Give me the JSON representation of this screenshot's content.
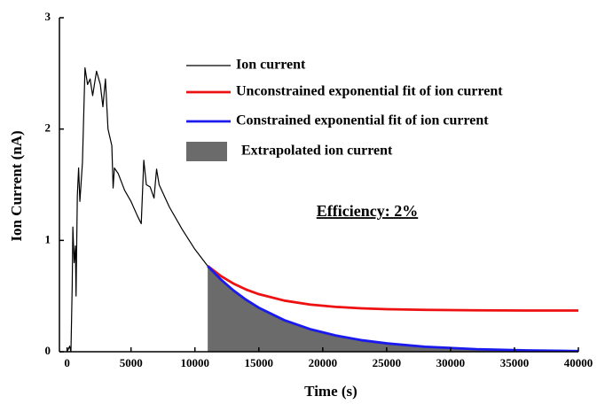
{
  "chart_data": {
    "type": "line",
    "xlabel": "Time (s)",
    "ylabel": "Ion Current (nA)",
    "annotation": "Efficiency: 2%",
    "xlim": [
      -600,
      40000
    ],
    "ylim": [
      0,
      3
    ],
    "xticks": [
      0,
      5000,
      10000,
      15000,
      20000,
      25000,
      30000,
      35000,
      40000
    ],
    "yticks": [
      0,
      1,
      2,
      3
    ],
    "series": [
      {
        "name": "Ion current",
        "color": "#000000",
        "x": [
          0,
          200,
          300,
          400,
          450,
          550,
          650,
          700,
          800,
          900,
          1000,
          1200,
          1400,
          1600,
          1800,
          2000,
          2300,
          2600,
          2800,
          3000,
          3200,
          3500,
          3600,
          3700,
          4000,
          4500,
          5000,
          5500,
          5800,
          6000,
          6200,
          6500,
          6800,
          7000,
          7200,
          8000,
          9000,
          10000,
          11000
        ],
        "values": [
          0,
          0.05,
          0,
          0.6,
          1.12,
          0.8,
          0.95,
          0.5,
          1.4,
          1.65,
          1.35,
          1.7,
          2.55,
          2.4,
          2.45,
          2.3,
          2.52,
          2.4,
          2.2,
          2.45,
          2.0,
          1.85,
          1.47,
          1.65,
          1.6,
          1.45,
          1.35,
          1.22,
          1.15,
          1.72,
          1.5,
          1.48,
          1.38,
          1.64,
          1.5,
          1.3,
          1.1,
          0.92,
          0.77
        ]
      },
      {
        "name": "Unconstrained exponential fit of ion current",
        "color": "#ee1111",
        "x": [
          11000,
          12000,
          13000,
          14000,
          15000,
          17000,
          19000,
          21000,
          23000,
          25000,
          28000,
          32000,
          36000,
          40000
        ],
        "values": [
          0.77,
          0.682,
          0.613,
          0.559,
          0.517,
          0.459,
          0.424,
          0.403,
          0.39,
          0.382,
          0.376,
          0.372,
          0.37,
          0.37
        ]
      },
      {
        "name": "Constrained exponential fit of ion current",
        "color": "#1a1aee",
        "x": [
          11000,
          12000,
          13000,
          14000,
          15000,
          17000,
          19000,
          21000,
          23000,
          25000,
          28000,
          32000,
          36000,
          40000
        ],
        "values": [
          0.77,
          0.652,
          0.552,
          0.467,
          0.395,
          0.283,
          0.203,
          0.146,
          0.104,
          0.075,
          0.045,
          0.023,
          0.012,
          0.006
        ]
      },
      {
        "name": "Extrapolated ion current",
        "color": "#6b6b6b",
        "fill": true,
        "x": [
          11000,
          12000,
          13000,
          14000,
          15000,
          17000,
          19000,
          21000,
          23000,
          25000,
          28000,
          32000,
          36000,
          40000
        ],
        "values": [
          0.77,
          0.652,
          0.552,
          0.467,
          0.395,
          0.283,
          0.203,
          0.146,
          0.104,
          0.075,
          0.045,
          0.023,
          0.012,
          0.006
        ]
      }
    ]
  }
}
